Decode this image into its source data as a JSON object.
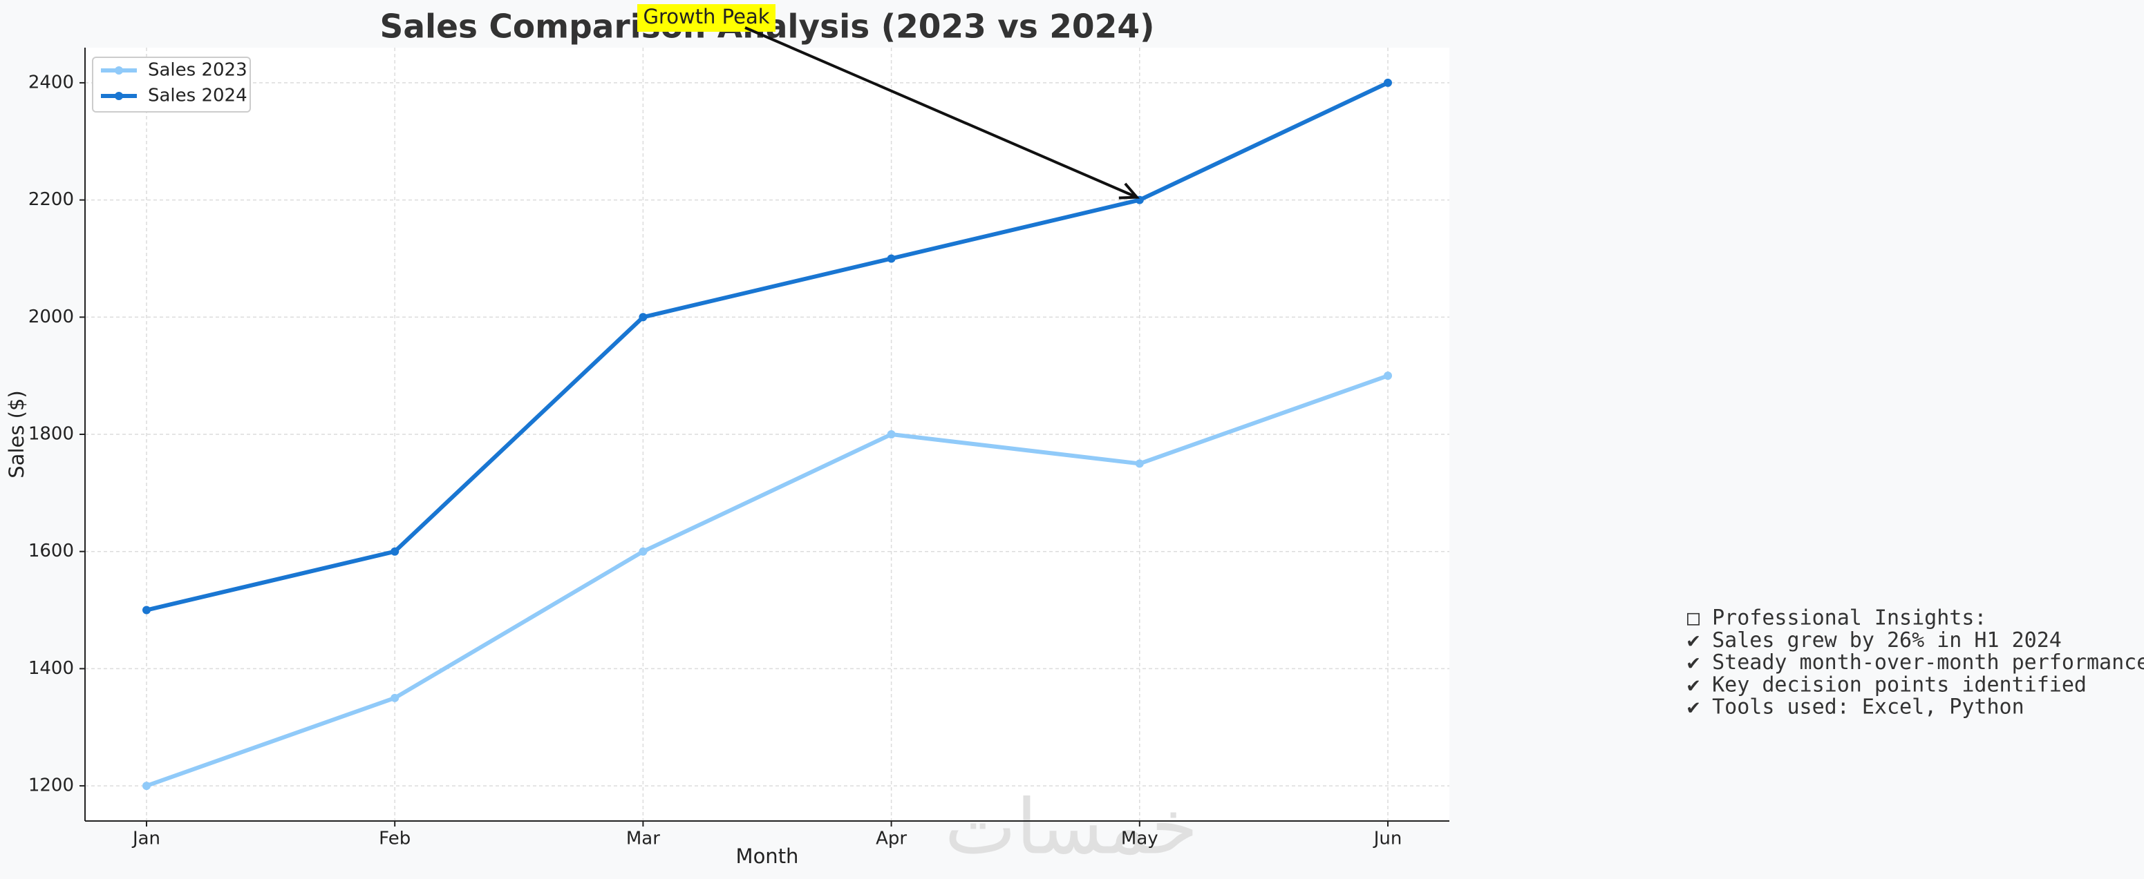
{
  "chart_data": {
    "type": "line",
    "title": "Sales Comparison Analysis (2023 vs 2024)",
    "x_label": "Month",
    "y_label": "Sales ($)",
    "categories": [
      "Jan",
      "Feb",
      "Mar",
      "Apr",
      "May",
      "Jun"
    ],
    "series": [
      {
        "name": "Sales 2023",
        "color": "#90caf9",
        "values": [
          1200,
          1350,
          1600,
          1800,
          1750,
          1900
        ]
      },
      {
        "name": "Sales 2024",
        "color": "#1976d2",
        "values": [
          1500,
          1600,
          2000,
          2100,
          2200,
          2400
        ]
      }
    ],
    "ylim": [
      1140,
      2460
    ],
    "yticks": [
      1200,
      1400,
      1600,
      1800,
      2000,
      2200,
      2400
    ],
    "grid": true,
    "legend": "upper-left",
    "annotation": {
      "text": "Growth Peak",
      "category": "May",
      "value": 2200,
      "color": "#ffff00"
    },
    "insights": [
      "□ Professional Insights:",
      "✔ Sales grew by 26% in H1 2024",
      "✔ Steady month-over-month performance",
      "✔ Key decision points identified",
      "✔ Tools used: Excel, Python"
    ],
    "watermark": "خمسات"
  }
}
